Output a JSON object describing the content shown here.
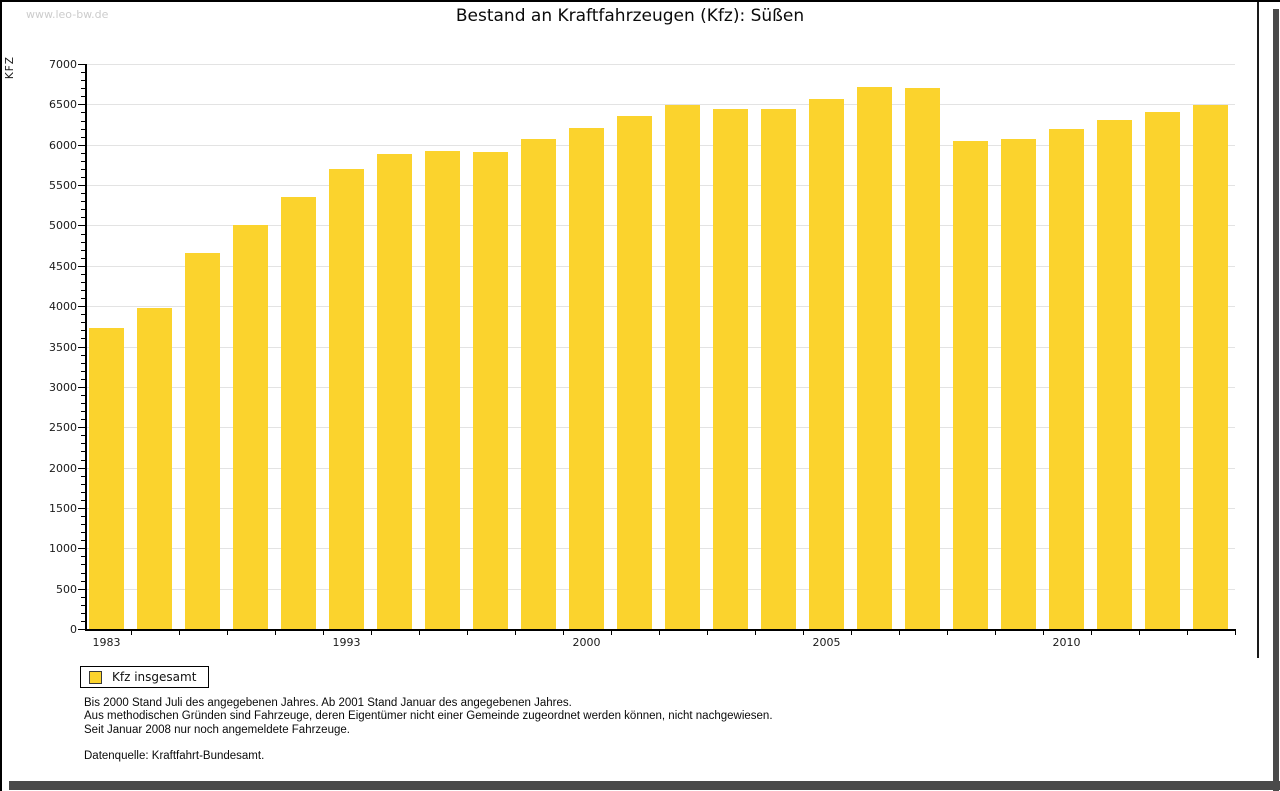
{
  "page": {
    "watermark": "www.leo-bw.de"
  },
  "chart_data": {
    "type": "bar",
    "title": "Bestand an Kraftfahrzeugen (Kfz): Süßen",
    "xlabel": "",
    "ylabel": "KFZ",
    "ylim": [
      0,
      7000
    ],
    "y_major_step": 500,
    "y_minor_step": 100,
    "grid": true,
    "bar_color": "#fbd32d",
    "values": [
      3730,
      3980,
      4660,
      5000,
      5350,
      5700,
      5880,
      5920,
      5910,
      6070,
      6210,
      6350,
      6490,
      6440,
      6440,
      6570,
      6720,
      6700,
      6050,
      6070,
      6200,
      6300,
      6410,
      6490
    ],
    "x_tick_labels": [
      {
        "index": 0,
        "label": "1983"
      },
      {
        "index": 5,
        "label": "1993"
      },
      {
        "index": 10,
        "label": "2000"
      },
      {
        "index": 15,
        "label": "2005"
      },
      {
        "index": 20,
        "label": "2010"
      }
    ],
    "legend": {
      "position": "bottom-left",
      "entries": [
        {
          "label": "Kfz insgesamt",
          "color": "#fbd32d"
        }
      ]
    }
  },
  "footnotes": {
    "line1": "Bis 2000 Stand Juli des angegebenen Jahres. Ab 2001 Stand Januar des angegebenen Jahres.",
    "line2": "Aus methodischen Gründen sind Fahrzeuge, deren Eigentümer nicht einer Gemeinde zugeordnet werden können, nicht nachgewiesen.",
    "line3": "Seit Januar 2008 nur noch angemeldete Fahrzeuge.",
    "source": "Datenquelle: Kraftfahrt-Bundesamt."
  }
}
